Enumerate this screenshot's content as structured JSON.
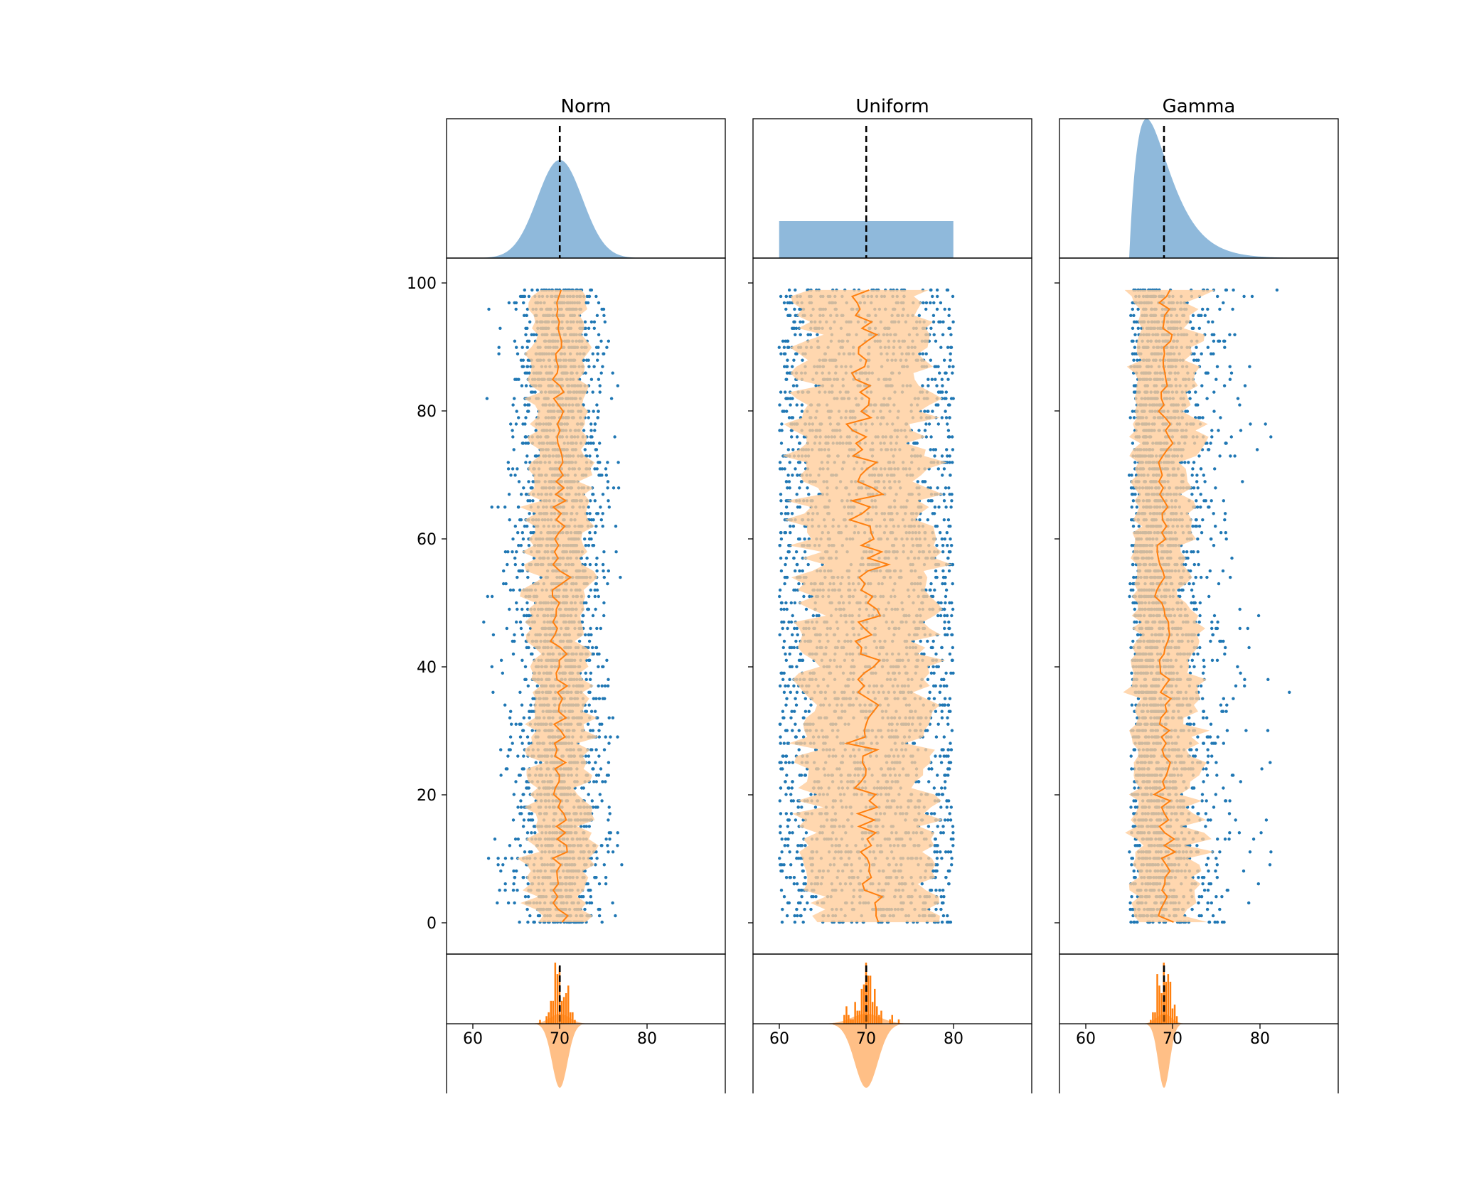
{
  "colors": {
    "blue": "#1f77b4",
    "blue_fill": "#8fb9db",
    "orange": "#ff7f0e",
    "orange_fill": "#ffcc99",
    "mean_line": "#000000"
  },
  "chart_data": [
    {
      "type": "scatter",
      "title": "Norm",
      "distribution": "normal",
      "mean": 70,
      "sd": 2.6,
      "xlim": [
        57,
        89
      ],
      "ylim": [
        -5,
        104
      ],
      "xticks": [
        "60",
        "70",
        "80"
      ],
      "yticks": [
        "0",
        "20",
        "40",
        "60",
        "80",
        "100"
      ],
      "rows": 100,
      "points_per_row": 30,
      "rolling_mean": 70,
      "band_halfwidth": 4.5,
      "top_density": "pdf",
      "top_mean_marker": 70,
      "bottom_hist_mean": 70,
      "bottom_hist_spread": 0.8
    },
    {
      "type": "scatter",
      "title": "Uniform",
      "distribution": "uniform",
      "low": 60,
      "high": 80,
      "mean": 70,
      "xlim": [
        57,
        89
      ],
      "ylim": [
        -5,
        104
      ],
      "xticks": [
        "60",
        "70",
        "80"
      ],
      "yticks": [
        "0",
        "20",
        "40",
        "60",
        "80",
        "100"
      ],
      "rows": 100,
      "points_per_row": 30,
      "rolling_mean": 70,
      "band_halfwidth": 6.5,
      "top_density": "uniform",
      "top_mean_marker": 70,
      "bottom_hist_mean": 70,
      "bottom_hist_spread": 1.2
    },
    {
      "type": "scatter",
      "title": "Gamma",
      "distribution": "gamma",
      "shape": 2,
      "scale": 2,
      "loc": 65,
      "mean": 69,
      "xlim": [
        57,
        89
      ],
      "ylim": [
        -5,
        104
      ],
      "xticks": [
        "60",
        "70",
        "80"
      ],
      "yticks": [
        "0",
        "20",
        "40",
        "60",
        "80",
        "100"
      ],
      "rows": 100,
      "points_per_row": 30,
      "rolling_mean": 69,
      "band_halfwidth": 3.5,
      "top_density": "pdf",
      "top_mean_marker": 69,
      "bottom_hist_mean": 69,
      "bottom_hist_spread": 0.6
    }
  ]
}
